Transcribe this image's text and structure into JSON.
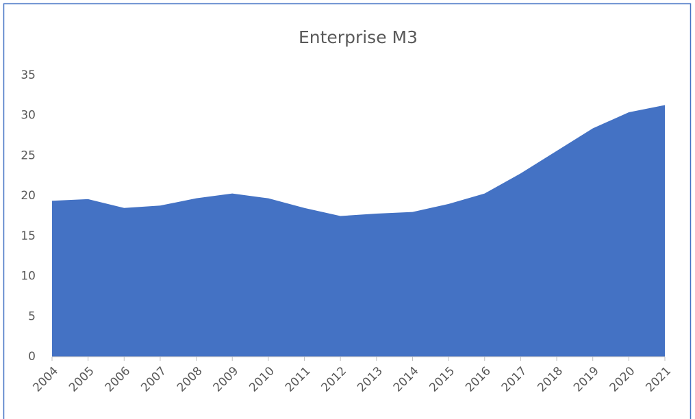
{
  "chart_data": {
    "type": "area",
    "title": "Enterprise M3",
    "categories": [
      "2004",
      "2005",
      "2006",
      "2007",
      "2008",
      "2009",
      "2010",
      "2011",
      "2012",
      "2013",
      "2014",
      "2015",
      "2016",
      "2017",
      "2018",
      "2019",
      "2020",
      "2021"
    ],
    "values": [
      19.4,
      19.6,
      18.5,
      18.8,
      19.7,
      20.3,
      19.7,
      18.5,
      17.5,
      17.8,
      18.0,
      19.0,
      20.3,
      22.8,
      25.6,
      28.4,
      30.4,
      31.3
    ],
    "color": "#4472c4",
    "ylim": [
      0,
      35
    ],
    "yticks": [
      0,
      5,
      10,
      15,
      20,
      25,
      30,
      35
    ],
    "grid": false
  }
}
